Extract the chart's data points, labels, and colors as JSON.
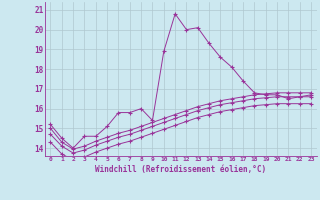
{
  "xlabel": "Windchill (Refroidissement éolien,°C)",
  "background_color": "#cce8f0",
  "line_color": "#993399",
  "grid_color": "#b0c8d0",
  "x_ticks": [
    0,
    1,
    2,
    3,
    4,
    5,
    6,
    7,
    8,
    9,
    10,
    11,
    12,
    13,
    14,
    15,
    16,
    17,
    18,
    19,
    20,
    21,
    22,
    23
  ],
  "y_ticks": [
    14,
    15,
    16,
    17,
    18,
    19,
    20,
    21
  ],
  "ylim": [
    13.6,
    21.4
  ],
  "xlim": [
    -0.5,
    23.5
  ],
  "line1_x": [
    0,
    1,
    2,
    3,
    4,
    5,
    6,
    7,
    8,
    9,
    10,
    11,
    12,
    13,
    14,
    15,
    16,
    17,
    18,
    19,
    20,
    21,
    22,
    23
  ],
  "line1_y": [
    15.2,
    14.5,
    14.0,
    14.6,
    14.6,
    15.1,
    15.8,
    15.8,
    16.0,
    15.4,
    18.9,
    20.8,
    20.0,
    20.1,
    19.3,
    18.6,
    18.1,
    17.4,
    16.8,
    16.7,
    16.7,
    16.5,
    16.6,
    16.7
  ],
  "line2_x": [
    0,
    1,
    2,
    3,
    4,
    5,
    6,
    7,
    8,
    9,
    10,
    11,
    12,
    13,
    14,
    15,
    16,
    17,
    18,
    19,
    20,
    21,
    22,
    23
  ],
  "line2_y": [
    15.0,
    14.3,
    13.95,
    14.1,
    14.35,
    14.55,
    14.75,
    14.9,
    15.1,
    15.3,
    15.5,
    15.7,
    15.9,
    16.1,
    16.25,
    16.4,
    16.5,
    16.6,
    16.7,
    16.75,
    16.8,
    16.8,
    16.8,
    16.8
  ],
  "line3_x": [
    0,
    1,
    2,
    3,
    4,
    5,
    6,
    7,
    8,
    9,
    10,
    11,
    12,
    13,
    14,
    15,
    16,
    17,
    18,
    19,
    20,
    21,
    22,
    23
  ],
  "line3_y": [
    14.7,
    14.1,
    13.75,
    13.9,
    14.15,
    14.35,
    14.55,
    14.7,
    14.9,
    15.1,
    15.3,
    15.5,
    15.7,
    15.9,
    16.05,
    16.2,
    16.3,
    16.4,
    16.5,
    16.55,
    16.6,
    16.6,
    16.6,
    16.6
  ],
  "line4_x": [
    0,
    1,
    2,
    3,
    4,
    5,
    6,
    7,
    8,
    9,
    10,
    11,
    12,
    13,
    14,
    15,
    16,
    17,
    18,
    19,
    20,
    21,
    22,
    23
  ],
  "line4_y": [
    14.3,
    13.7,
    13.4,
    13.55,
    13.8,
    14.0,
    14.2,
    14.35,
    14.55,
    14.75,
    14.95,
    15.15,
    15.35,
    15.55,
    15.7,
    15.85,
    15.95,
    16.05,
    16.15,
    16.2,
    16.25,
    16.25,
    16.25,
    16.25
  ]
}
